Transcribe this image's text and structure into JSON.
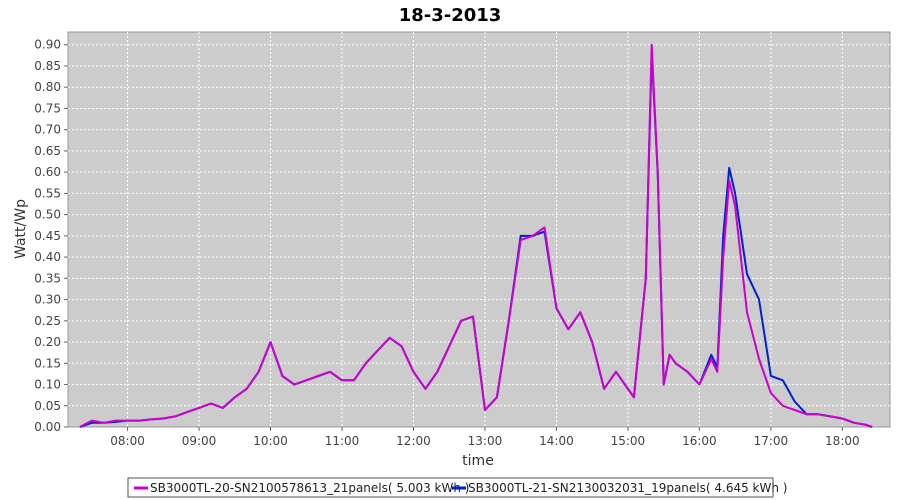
{
  "chart_data": {
    "type": "line",
    "title": "18-3-2013",
    "xlabel": "time",
    "ylabel": "Watt/Wp",
    "xlim": [
      "07:10",
      "18:40"
    ],
    "ylim": [
      0,
      0.93
    ],
    "grid": true,
    "legend_position": "bottom",
    "x_ticks": [
      "08:00",
      "09:00",
      "10:00",
      "11:00",
      "12:00",
      "13:00",
      "14:00",
      "15:00",
      "16:00",
      "17:00",
      "18:00"
    ],
    "y_ticks": [
      "0.00",
      "0.05",
      "0.10",
      "0.15",
      "0.20",
      "0.25",
      "0.30",
      "0.35",
      "0.40",
      "0.45",
      "0.50",
      "0.55",
      "0.60",
      "0.65",
      "0.70",
      "0.75",
      "0.80",
      "0.85",
      "0.90"
    ],
    "series": [
      {
        "name": "SB3000TL-20-SN2100578613_21panels( 5.003 kWh )",
        "color": "#cc00cc",
        "x": [
          "07:20",
          "07:30",
          "07:40",
          "07:50",
          "08:00",
          "08:10",
          "08:20",
          "08:30",
          "08:40",
          "08:50",
          "09:00",
          "09:10",
          "09:20",
          "09:30",
          "09:40",
          "09:50",
          "10:00",
          "10:10",
          "10:20",
          "10:30",
          "10:40",
          "10:50",
          "11:00",
          "11:10",
          "11:20",
          "11:30",
          "11:40",
          "11:50",
          "12:00",
          "12:10",
          "12:20",
          "12:30",
          "12:40",
          "12:50",
          "13:00",
          "13:10",
          "13:20",
          "13:30",
          "13:40",
          "13:50",
          "14:00",
          "14:10",
          "14:20",
          "14:30",
          "14:40",
          "14:50",
          "15:00",
          "15:05",
          "15:15",
          "15:20",
          "15:25",
          "15:30",
          "15:35",
          "15:40",
          "15:50",
          "16:00",
          "16:10",
          "16:15",
          "16:20",
          "16:25",
          "16:30",
          "16:40",
          "16:50",
          "17:00",
          "17:10",
          "17:20",
          "17:30",
          "17:40",
          "17:50",
          "18:00",
          "18:10",
          "18:20",
          "18:25"
        ],
        "values": [
          0.0,
          0.015,
          0.01,
          0.015,
          0.015,
          0.015,
          0.018,
          0.02,
          0.025,
          0.035,
          0.045,
          0.055,
          0.045,
          0.07,
          0.09,
          0.13,
          0.2,
          0.12,
          0.1,
          0.11,
          0.12,
          0.13,
          0.11,
          0.11,
          0.15,
          0.18,
          0.21,
          0.19,
          0.13,
          0.09,
          0.13,
          0.19,
          0.25,
          0.26,
          0.04,
          0.07,
          0.25,
          0.44,
          0.45,
          0.47,
          0.28,
          0.23,
          0.27,
          0.2,
          0.09,
          0.13,
          0.09,
          0.07,
          0.35,
          0.9,
          0.6,
          0.1,
          0.17,
          0.15,
          0.13,
          0.1,
          0.16,
          0.13,
          0.4,
          0.58,
          0.52,
          0.27,
          0.16,
          0.08,
          0.05,
          0.04,
          0.03,
          0.03,
          0.025,
          0.02,
          0.01,
          0.005,
          0.0
        ]
      },
      {
        "name": "SB3000TL-21-SN2130032031_19panels( 4.645 kWh )",
        "color": "#0022cc",
        "x": [
          "07:20",
          "07:30",
          "07:40",
          "07:50",
          "08:00",
          "08:10",
          "08:20",
          "08:30",
          "08:40",
          "08:50",
          "09:00",
          "09:10",
          "09:20",
          "09:30",
          "09:40",
          "09:50",
          "10:00",
          "10:10",
          "10:20",
          "10:30",
          "10:40",
          "10:50",
          "11:00",
          "11:10",
          "11:20",
          "11:30",
          "11:40",
          "11:50",
          "12:00",
          "12:10",
          "12:20",
          "12:30",
          "12:40",
          "12:50",
          "13:00",
          "13:10",
          "13:20",
          "13:30",
          "13:40",
          "13:50",
          "14:00",
          "14:10",
          "14:20",
          "14:30",
          "14:40",
          "14:50",
          "15:00",
          "15:05",
          "15:15",
          "15:20",
          "15:25",
          "15:30",
          "15:35",
          "15:40",
          "15:50",
          "16:00",
          "16:10",
          "16:15",
          "16:20",
          "16:25",
          "16:30",
          "16:40",
          "16:50",
          "17:00",
          "17:10",
          "17:20",
          "17:30",
          "17:40",
          "17:50",
          "18:00",
          "18:10",
          "18:20",
          "18:25"
        ],
        "values": [
          0.0,
          0.01,
          0.01,
          0.012,
          0.015,
          0.015,
          0.018,
          0.02,
          0.025,
          0.035,
          0.045,
          0.055,
          0.045,
          0.07,
          0.09,
          0.13,
          0.2,
          0.12,
          0.1,
          0.11,
          0.12,
          0.13,
          0.11,
          0.11,
          0.15,
          0.18,
          0.21,
          0.19,
          0.13,
          0.09,
          0.13,
          0.19,
          0.25,
          0.26,
          0.04,
          0.07,
          0.25,
          0.45,
          0.45,
          0.46,
          0.28,
          0.23,
          0.27,
          0.2,
          0.09,
          0.13,
          0.09,
          0.07,
          0.35,
          0.88,
          0.6,
          0.1,
          0.17,
          0.15,
          0.13,
          0.1,
          0.17,
          0.14,
          0.45,
          0.61,
          0.55,
          0.36,
          0.3,
          0.12,
          0.11,
          0.06,
          0.03,
          0.03,
          0.025,
          0.02,
          0.01,
          0.005,
          0.0
        ]
      }
    ]
  }
}
